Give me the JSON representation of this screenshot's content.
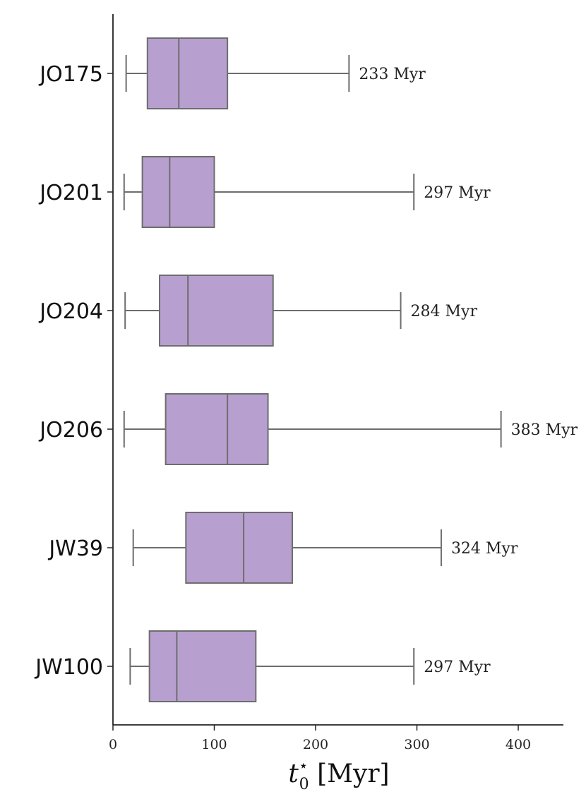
{
  "chart_data": {
    "type": "boxplot",
    "orientation": "horizontal",
    "categories": [
      "JO175",
      "JO201",
      "JO204",
      "JO206",
      "JW39",
      "JW100"
    ],
    "boxes": [
      {
        "name": "JO175",
        "min": 13,
        "q1": 34,
        "median": 65,
        "q3": 113,
        "max": 233,
        "annotation": "233 Myr"
      },
      {
        "name": "JO201",
        "min": 11,
        "q1": 29,
        "median": 56,
        "q3": 100,
        "max": 297,
        "annotation": "297 Myr"
      },
      {
        "name": "JO204",
        "min": 12,
        "q1": 46,
        "median": 74,
        "q3": 158,
        "max": 284,
        "annotation": "284 Myr"
      },
      {
        "name": "JO206",
        "min": 11,
        "q1": 52,
        "median": 113,
        "q3": 153,
        "max": 383,
        "annotation": "383 Myr"
      },
      {
        "name": "JW39",
        "min": 20,
        "q1": 72,
        "median": 129,
        "q3": 177,
        "max": 324,
        "annotation": "324 Myr"
      },
      {
        "name": "JW100",
        "min": 17,
        "q1": 36,
        "median": 63,
        "q3": 141,
        "max": 297,
        "annotation": "297 Myr"
      }
    ],
    "xticks": [
      0,
      100,
      200,
      300,
      400
    ],
    "xlim": [
      0,
      445
    ],
    "xlabel": {
      "main": "t",
      "sup": "⋆",
      "sub": "0",
      "unit": " [Myr]"
    },
    "ylabel": "",
    "colors": {
      "box_fill": "#b7a0cf",
      "box_edge": "#6d6d6d",
      "axis": "#222222"
    },
    "grid": false
  }
}
